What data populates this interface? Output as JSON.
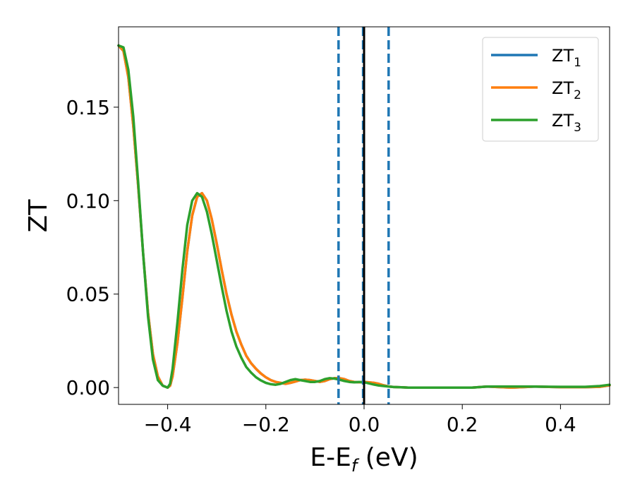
{
  "chart_data": {
    "type": "line",
    "xlabel": "E-E",
    "xlabel_sub": "f",
    "xlabel_unit": " (eV)",
    "ylabel": "ZT",
    "xlim": [
      -0.5,
      0.5
    ],
    "ylim": [
      -0.009,
      0.193
    ],
    "xticks": [
      -0.4,
      -0.2,
      0.0,
      0.2,
      0.4
    ],
    "xtick_labels": [
      "−0.4",
      "−0.2",
      "0.0",
      "0.2",
      "0.4"
    ],
    "yticks": [
      0.0,
      0.05,
      0.1,
      0.15
    ],
    "ytick_labels": [
      "0.00",
      "0.05",
      "0.10",
      "0.15"
    ],
    "grid": false,
    "legend_position": "top-right",
    "vlines": [
      {
        "x": -0.052,
        "style": "dashed",
        "color": "#1f77b4"
      },
      {
        "x": -0.002,
        "style": "dashed",
        "color": "#1f77b4"
      },
      {
        "x": 0.05,
        "style": "dashed",
        "color": "#1f77b4"
      },
      {
        "x": 0.0,
        "style": "solid",
        "color": "#000000"
      }
    ],
    "series": [
      {
        "name": "ZT",
        "sub": "1",
        "color": "#1f77b4",
        "x": [
          -0.5,
          -0.49,
          -0.48,
          -0.47,
          -0.46,
          -0.45,
          -0.44,
          -0.43,
          -0.42,
          -0.41,
          -0.4,
          -0.395,
          -0.39,
          -0.38,
          -0.37,
          -0.36,
          -0.35,
          -0.34,
          -0.33,
          -0.32,
          -0.31,
          -0.3,
          -0.29,
          -0.28,
          -0.27,
          -0.26,
          -0.25,
          -0.24,
          -0.23,
          -0.22,
          -0.21,
          -0.2,
          -0.19,
          -0.18,
          -0.17,
          -0.16,
          -0.15,
          -0.14,
          -0.13,
          -0.12,
          -0.11,
          -0.1,
          -0.09,
          -0.08,
          -0.07,
          -0.06,
          -0.05,
          -0.04,
          -0.03,
          -0.02,
          -0.01,
          0.0,
          0.01,
          0.02,
          0.03,
          0.04,
          0.05,
          0.06,
          0.07,
          0.08,
          0.09,
          0.1,
          0.11,
          0.12,
          0.13,
          0.14,
          0.15,
          0.16,
          0.17,
          0.18,
          0.2,
          0.22,
          0.25,
          0.3,
          0.35,
          0.4,
          0.45,
          0.48,
          0.5
        ],
        "y": [
          0.183,
          0.18,
          0.166,
          0.14,
          0.108,
          0.072,
          0.04,
          0.018,
          0.006,
          0.001,
          0.0,
          0.001,
          0.006,
          0.024,
          0.048,
          0.073,
          0.092,
          0.102,
          0.104,
          0.1,
          0.09,
          0.077,
          0.063,
          0.05,
          0.039,
          0.03,
          0.023,
          0.017,
          0.013,
          0.01,
          0.0075,
          0.0055,
          0.004,
          0.003,
          0.0025,
          0.002,
          0.0025,
          0.0032,
          0.004,
          0.0042,
          0.004,
          0.0035,
          0.003,
          0.0035,
          0.0045,
          0.005,
          0.005,
          0.0045,
          0.0035,
          0.003,
          0.0028,
          0.003,
          0.0028,
          0.0025,
          0.002,
          0.0012,
          0.0006,
          0.0003,
          0.0002,
          0.0001,
          0.0,
          0.0,
          0.0,
          0.0,
          0.0,
          0.0,
          0.0,
          0.0,
          0.0,
          0.0,
          0.0,
          0.0,
          0.0005,
          0.0,
          0.0005,
          0.0002,
          0.0002,
          0.0004,
          0.0012
        ]
      },
      {
        "name": "ZT",
        "sub": "2",
        "color": "#ff7f0e",
        "x": [
          -0.5,
          -0.49,
          -0.48,
          -0.47,
          -0.46,
          -0.45,
          -0.44,
          -0.43,
          -0.42,
          -0.41,
          -0.4,
          -0.395,
          -0.39,
          -0.38,
          -0.37,
          -0.36,
          -0.35,
          -0.34,
          -0.33,
          -0.32,
          -0.31,
          -0.3,
          -0.29,
          -0.28,
          -0.27,
          -0.26,
          -0.25,
          -0.24,
          -0.23,
          -0.22,
          -0.21,
          -0.2,
          -0.19,
          -0.18,
          -0.17,
          -0.16,
          -0.15,
          -0.14,
          -0.13,
          -0.12,
          -0.11,
          -0.1,
          -0.09,
          -0.08,
          -0.07,
          -0.06,
          -0.05,
          -0.04,
          -0.03,
          -0.02,
          -0.01,
          0.0,
          0.01,
          0.02,
          0.03,
          0.04,
          0.05,
          0.06,
          0.07,
          0.08,
          0.09,
          0.1,
          0.11,
          0.12,
          0.13,
          0.14,
          0.15,
          0.16,
          0.17,
          0.18,
          0.2,
          0.22,
          0.25,
          0.3,
          0.35,
          0.4,
          0.45,
          0.48,
          0.5
        ],
        "y": [
          0.183,
          0.18,
          0.166,
          0.14,
          0.108,
          0.072,
          0.04,
          0.018,
          0.006,
          0.001,
          0.0,
          0.001,
          0.006,
          0.024,
          0.048,
          0.073,
          0.092,
          0.102,
          0.104,
          0.1,
          0.09,
          0.077,
          0.063,
          0.05,
          0.039,
          0.03,
          0.023,
          0.017,
          0.013,
          0.01,
          0.0075,
          0.0055,
          0.004,
          0.003,
          0.0025,
          0.002,
          0.0025,
          0.0032,
          0.004,
          0.0042,
          0.004,
          0.0035,
          0.003,
          0.0035,
          0.0045,
          0.005,
          0.005,
          0.0045,
          0.0035,
          0.003,
          0.0028,
          0.003,
          0.0028,
          0.0025,
          0.002,
          0.0012,
          0.0006,
          0.0003,
          0.0002,
          0.0001,
          0.0,
          0.0,
          0.0,
          0.0,
          0.0,
          0.0,
          0.0,
          0.0,
          0.0,
          0.0,
          0.0,
          0.0,
          0.0005,
          0.0,
          0.0005,
          0.0002,
          0.0002,
          0.0004,
          0.0012
        ]
      },
      {
        "name": "ZT",
        "sub": "3",
        "color": "#2ca02c",
        "x": [
          -0.5,
          -0.49,
          -0.48,
          -0.47,
          -0.46,
          -0.45,
          -0.44,
          -0.43,
          -0.42,
          -0.41,
          -0.4,
          -0.395,
          -0.39,
          -0.38,
          -0.37,
          -0.36,
          -0.35,
          -0.34,
          -0.33,
          -0.32,
          -0.31,
          -0.3,
          -0.29,
          -0.28,
          -0.27,
          -0.26,
          -0.25,
          -0.24,
          -0.23,
          -0.22,
          -0.21,
          -0.2,
          -0.19,
          -0.18,
          -0.17,
          -0.16,
          -0.15,
          -0.14,
          -0.13,
          -0.12,
          -0.11,
          -0.1,
          -0.09,
          -0.08,
          -0.07,
          -0.06,
          -0.05,
          -0.04,
          -0.03,
          -0.02,
          -0.01,
          0.0,
          0.01,
          0.02,
          0.03,
          0.04,
          0.05,
          0.06,
          0.07,
          0.08,
          0.09,
          0.1,
          0.11,
          0.12,
          0.13,
          0.14,
          0.15,
          0.16,
          0.17,
          0.18,
          0.2,
          0.22,
          0.25,
          0.3,
          0.35,
          0.4,
          0.45,
          0.48,
          0.5
        ],
        "y": [
          0.183,
          0.182,
          0.17,
          0.145,
          0.11,
          0.072,
          0.038,
          0.015,
          0.004,
          0.001,
          0.0,
          0.002,
          0.01,
          0.035,
          0.063,
          0.087,
          0.1,
          0.104,
          0.102,
          0.094,
          0.082,
          0.068,
          0.054,
          0.041,
          0.03,
          0.022,
          0.016,
          0.011,
          0.008,
          0.0055,
          0.0038,
          0.0025,
          0.0018,
          0.0015,
          0.002,
          0.003,
          0.004,
          0.0045,
          0.004,
          0.0035,
          0.003,
          0.003,
          0.0035,
          0.0045,
          0.005,
          0.0048,
          0.0042,
          0.0035,
          0.003,
          0.0028,
          0.003,
          0.0028,
          0.0022,
          0.0016,
          0.0011,
          0.0008,
          0.0005,
          0.0003,
          0.0002,
          0.0001,
          0.0,
          0.0,
          0.0,
          0.0,
          0.0,
          0.0,
          0.0,
          0.0,
          0.0,
          0.0,
          0.0,
          0.0,
          0.0005,
          0.0005,
          0.0005,
          0.0004,
          0.0004,
          0.0008,
          0.0015
        ]
      }
    ]
  }
}
